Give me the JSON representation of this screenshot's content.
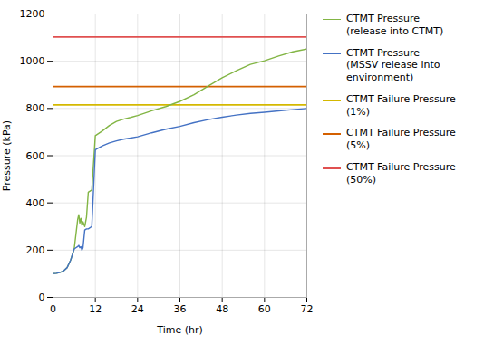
{
  "chart_data": {
    "type": "line",
    "xlabel": "Time (hr)",
    "ylabel": "Pressure (kPa)",
    "xlim": [
      0,
      72
    ],
    "ylim": [
      0,
      1200
    ],
    "xticks": [
      0,
      12,
      24,
      36,
      48,
      60,
      72
    ],
    "yticks": [
      0,
      200,
      400,
      600,
      800,
      1000,
      1200
    ],
    "grid": true,
    "legend": "right",
    "series": [
      {
        "name": "CTMT Pressure\n(release into CTMT)",
        "color": "#82b544",
        "type": "line",
        "x": [
          0,
          0.5,
          1,
          2,
          3,
          4,
          5,
          6,
          7,
          7.3,
          7.6,
          7.9,
          8.2,
          8.5,
          9.0,
          9.5,
          10,
          11,
          12,
          14,
          16,
          18,
          20,
          22,
          24,
          28,
          32,
          36,
          40,
          44,
          48,
          52,
          56,
          60,
          64,
          68,
          72
        ],
        "values": [
          101,
          101,
          102,
          106,
          112,
          126,
          158,
          205,
          330,
          350,
          315,
          335,
          305,
          320,
          300,
          340,
          445,
          455,
          685,
          705,
          728,
          745,
          755,
          762,
          770,
          790,
          808,
          830,
          858,
          895,
          930,
          960,
          987,
          1002,
          1022,
          1040,
          1052
        ]
      },
      {
        "name": "CTMT Pressure\n(MSSV release into\nenvironment)",
        "color": "#4472c4",
        "type": "line",
        "x": [
          0,
          0.5,
          1,
          2,
          3,
          4,
          5,
          6,
          7,
          7.3,
          7.6,
          7.9,
          8.2,
          8.5,
          9.0,
          9.5,
          10,
          11,
          12,
          14,
          16,
          18,
          20,
          22,
          24,
          28,
          32,
          36,
          40,
          44,
          48,
          52,
          56,
          60,
          64,
          68,
          72
        ],
        "values": [
          101,
          101,
          102,
          106,
          112,
          126,
          158,
          205,
          215,
          220,
          210,
          215,
          200,
          210,
          285,
          290,
          290,
          300,
          625,
          642,
          654,
          663,
          670,
          675,
          680,
          697,
          712,
          724,
          740,
          753,
          763,
          772,
          779,
          784,
          790,
          795,
          800
        ]
      },
      {
        "name": "CTMT Failure Pressure\n(1%)",
        "color": "#d4b800",
        "type": "hline",
        "values": [
          815
        ]
      },
      {
        "name": "CTMT Failure Pressure\n(5%)",
        "color": "#d46000",
        "type": "hline",
        "values": [
          893
        ]
      },
      {
        "name": "CTMT Failure Pressure\n(50%)",
        "color": "#e05050",
        "type": "hline",
        "values": [
          1103
        ]
      }
    ]
  }
}
